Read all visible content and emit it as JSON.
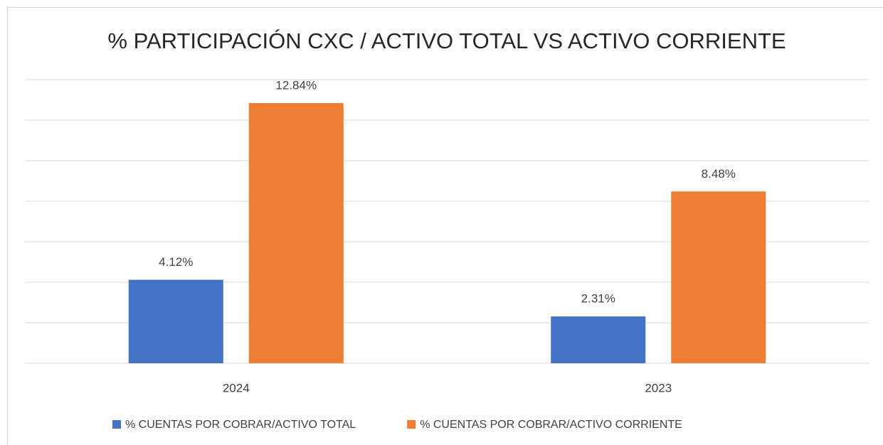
{
  "chart_data": {
    "type": "bar",
    "title": "% PARTICIPACIÓN CXC / ACTIVO TOTAL VS ACTIVO CORRIENTE",
    "categories": [
      "2024",
      "2023"
    ],
    "series": [
      {
        "name": "% CUENTAS POR COBRAR/ACTIVO TOTAL",
        "color": "#4472c4",
        "values": [
          4.12,
          2.31
        ],
        "value_labels": [
          "4.12%",
          "2.31%"
        ]
      },
      {
        "name": "% CUENTAS POR COBRAR/ACTIVO CORRIENTE",
        "color": "#ed7d31",
        "values": [
          12.84,
          8.48
        ],
        "value_labels": [
          "12.84%",
          "8.48%"
        ]
      }
    ],
    "ylim": [
      0,
      14
    ],
    "yticks": [
      0,
      2,
      4,
      6,
      8,
      10,
      12,
      14
    ],
    "grid": true,
    "legend": "bottom"
  }
}
